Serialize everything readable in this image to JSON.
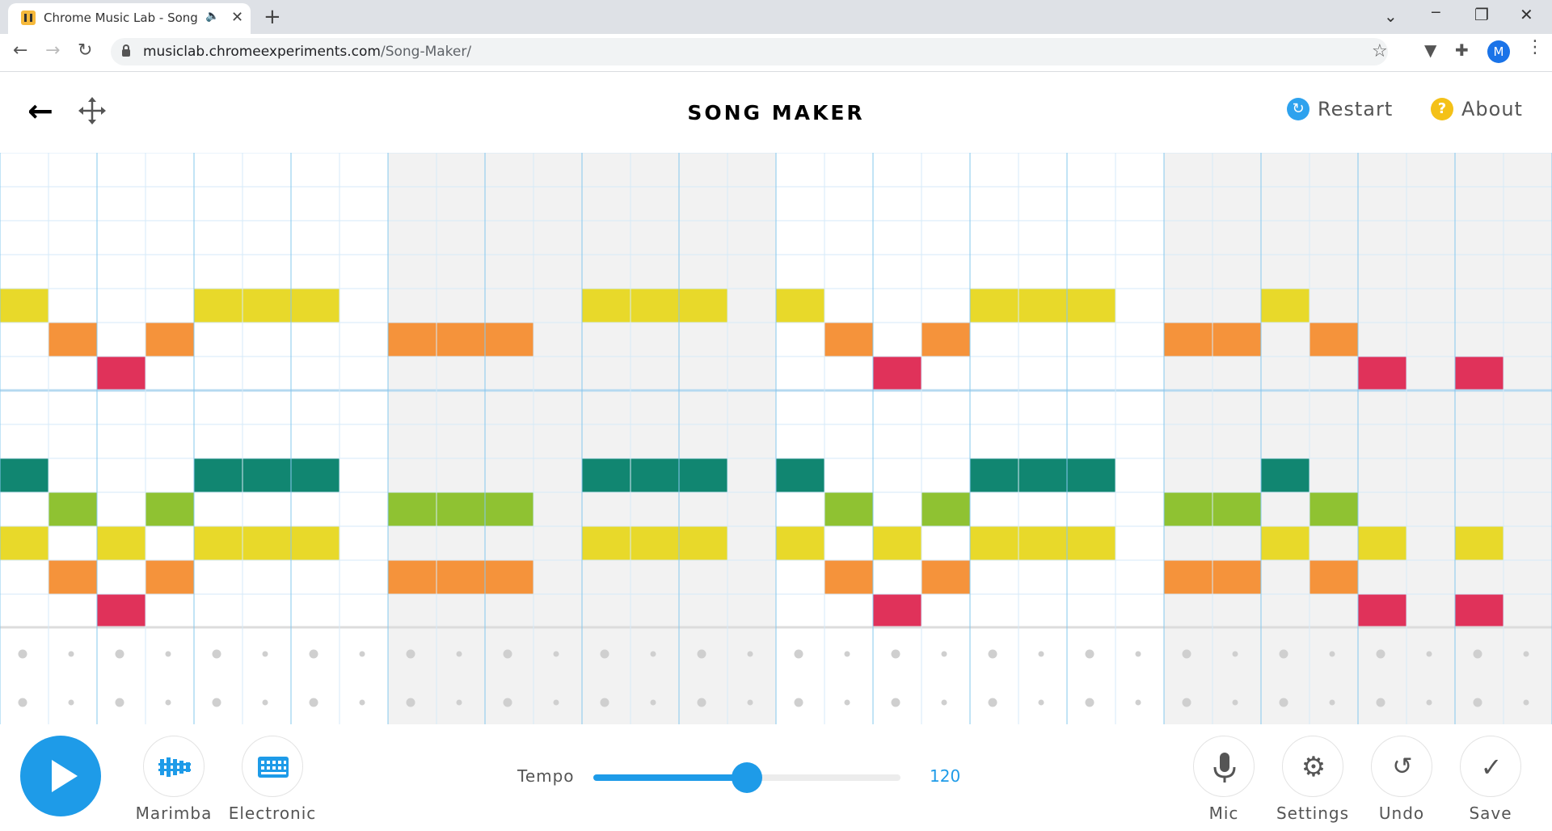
{
  "browser": {
    "tab_title": "Chrome Music Lab - Song M",
    "tab_audio_icon": "speaker-icon",
    "new_tab_label": "+",
    "url_domain": "musiclab.chromeexperiments.com",
    "url_path": "/Song-Maker/",
    "profile_initial": "M"
  },
  "header": {
    "title": "SONG MAKER",
    "restart_label": "Restart",
    "about_label": "About"
  },
  "grid": {
    "columns": 32,
    "melody_rows": 14,
    "beats_per_bar": 4,
    "notes": [
      {
        "row": 4,
        "cols": [
          0,
          4,
          5,
          6,
          12,
          13,
          14,
          16,
          20,
          21,
          22,
          26
        ]
      },
      {
        "row": 5,
        "cols": [
          1,
          3,
          8,
          9,
          10,
          17,
          19,
          24,
          25,
          27
        ]
      },
      {
        "row": 6,
        "cols": [
          2,
          18,
          28,
          30
        ]
      },
      {
        "row": 9,
        "cols": [
          0,
          4,
          5,
          6,
          12,
          13,
          14,
          16,
          20,
          21,
          22,
          26
        ]
      },
      {
        "row": 10,
        "cols": [
          1,
          3,
          8,
          9,
          10,
          17,
          19,
          24,
          25,
          27
        ]
      },
      {
        "row": 11,
        "cols": [
          0,
          2,
          4,
          5,
          6,
          12,
          13,
          14,
          16,
          18,
          20,
          21,
          22,
          26,
          28,
          30
        ]
      },
      {
        "row": 12,
        "cols": [
          1,
          3,
          8,
          9,
          10,
          17,
          19,
          24,
          25,
          27
        ]
      },
      {
        "row": 13,
        "cols": [
          2,
          18,
          28,
          30
        ]
      }
    ],
    "row_colors": [
      "#8e44ad",
      "#3b5bdb",
      "#2ea2ee",
      "#14a085",
      "#e8d92a",
      "#f5933b",
      "#e0325a",
      "#8e44ad",
      "#3b5bdb",
      "#118671",
      "#8fc232",
      "#e8d92a",
      "#f5933b",
      "#e0325a"
    ],
    "percussion_rows": 2
  },
  "controls": {
    "instrument_1_label": "Marimba",
    "instrument_2_label": "Electronic",
    "tempo_label": "Tempo",
    "tempo_value": "120",
    "tempo_fraction": 0.5,
    "mic_label": "Mic",
    "settings_label": "Settings",
    "undo_label": "Undo",
    "save_label": "Save"
  }
}
